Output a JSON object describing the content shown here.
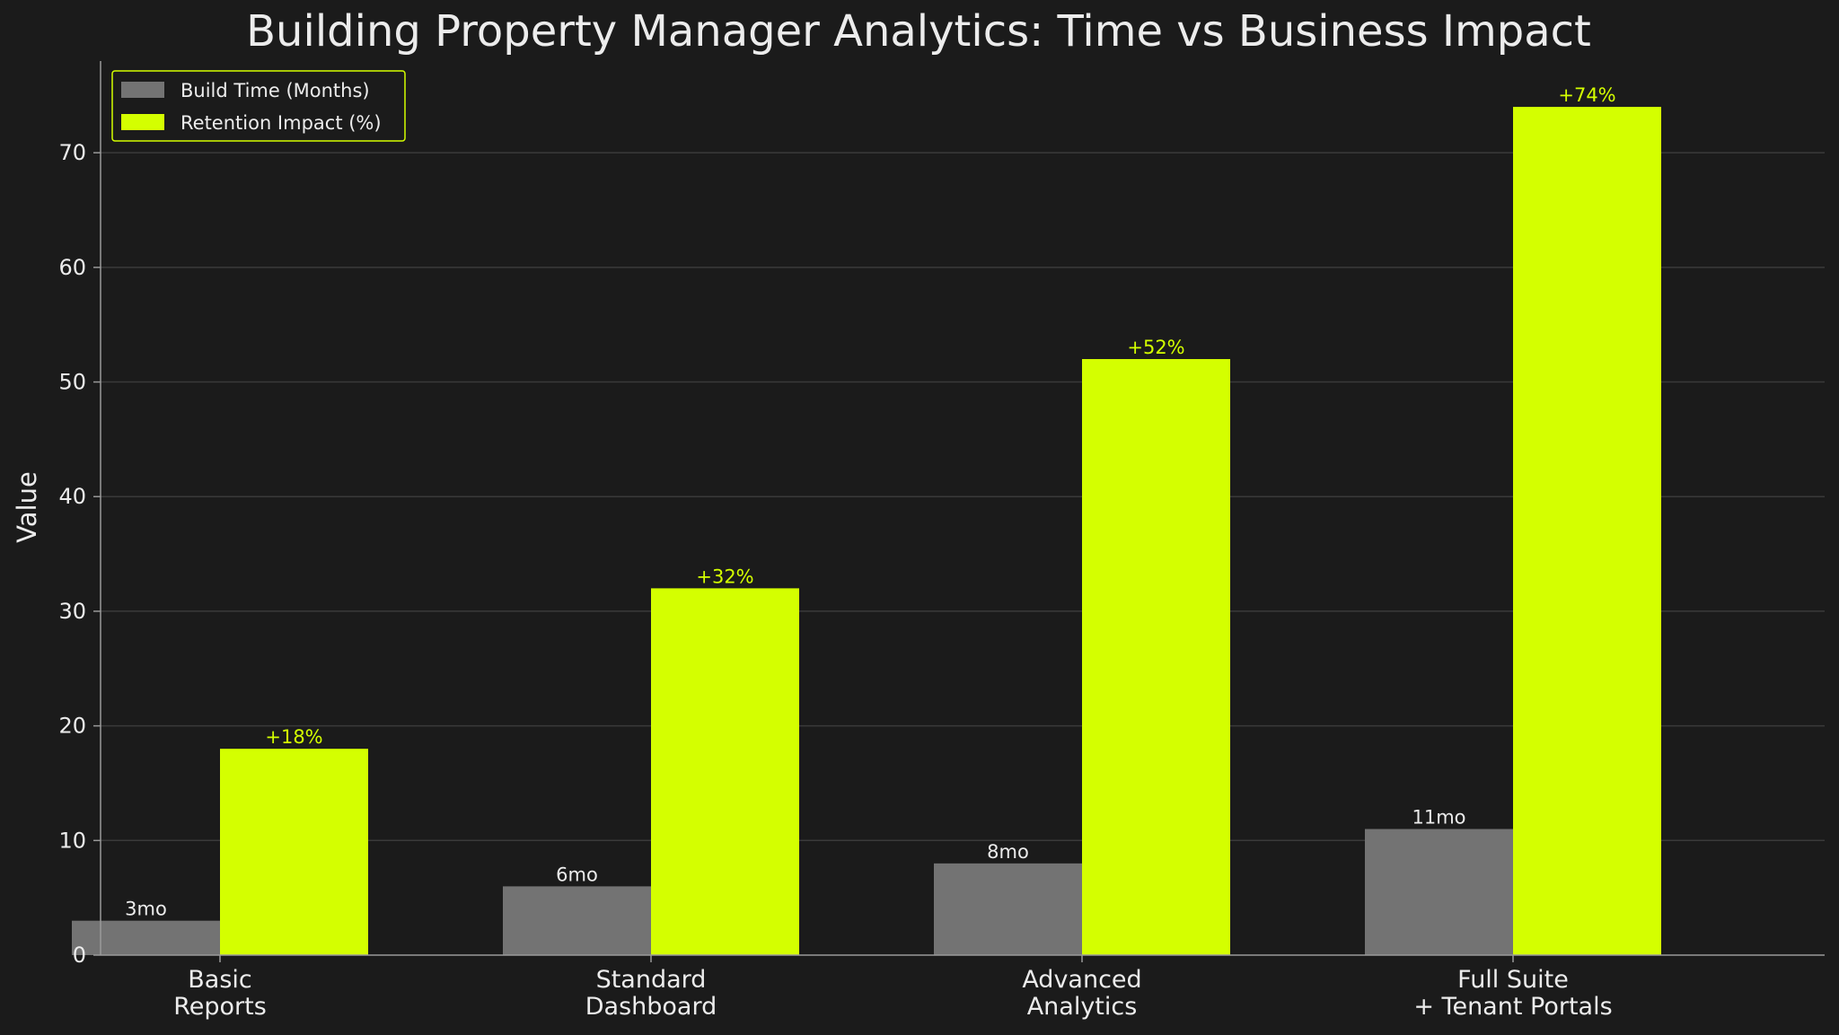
{
  "chart_data": {
    "type": "bar",
    "title": "Building Property Manager Analytics: Time vs Business Impact",
    "ylabel": "Value",
    "xlabel": "",
    "ylim": [
      0,
      78
    ],
    "yticks": [
      0,
      10,
      20,
      30,
      40,
      50,
      60,
      70
    ],
    "grid": true,
    "legend_position": "top-left",
    "categories": [
      [
        "Basic",
        "Reports"
      ],
      [
        "Standard",
        "Dashboard"
      ],
      [
        "Advanced",
        "Analytics"
      ],
      [
        "Full Suite",
        "+ Tenant Portals"
      ]
    ],
    "series": [
      {
        "name": "Build Time (Months)",
        "color": "#737373",
        "label_color": "#ececec",
        "values": [
          3,
          6,
          8,
          11
        ],
        "labels": [
          "3mo",
          "6mo",
          "8mo",
          "11mo"
        ]
      },
      {
        "name": "Retention Impact (%)",
        "color": "#d4ff00",
        "label_color": "#d4ff00",
        "values": [
          18,
          32,
          52,
          74
        ],
        "labels": [
          "+18%",
          "+32%",
          "+52%",
          "+74%"
        ]
      }
    ]
  },
  "colors": {
    "background": "#1b1b1b",
    "grid": "#3a3a3a",
    "axis": "#9a9a9a",
    "text": "#ececec",
    "legend_border": "#d4ff00",
    "accent": "#d4ff00"
  }
}
